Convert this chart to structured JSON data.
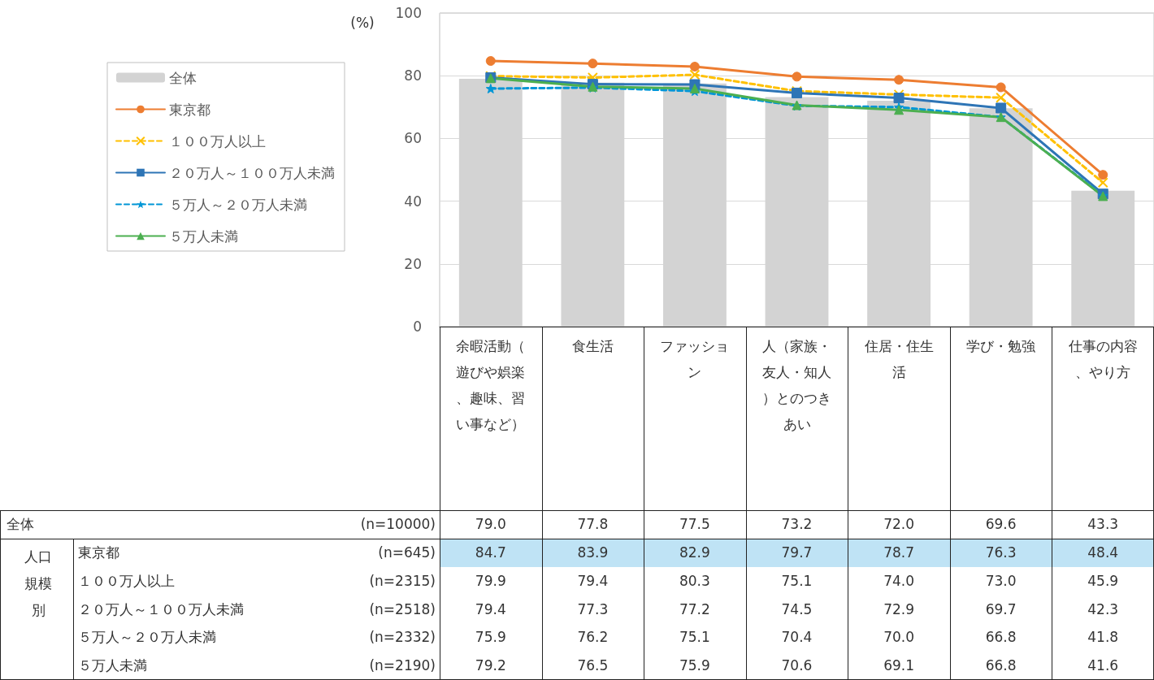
{
  "chart_data": {
    "type": "bar",
    "ylabel": "(%)",
    "categories": [
      "余暇活動（遊びや娯楽、趣味、習い事など）",
      "食生活",
      "ファッション",
      "人（家族・友人・知人）とのつきあい",
      "住居・住生活",
      "学び・勉強",
      "仕事の内容、やり方"
    ],
    "series": [
      {
        "name": "全体",
        "color": "#d3d3d3",
        "values": [
          79.0,
          77.8,
          77.5,
          73.2,
          72.0,
          69.6,
          43.3
        ],
        "value_labels": [
          "79.0",
          "77.8",
          "77.5",
          "73.2",
          "72.0",
          "69.6",
          "43.3"
        ]
      },
      {
        "name": "東京都",
        "type": "line",
        "color": "#ed7d31",
        "marker": "circle",
        "line_style": "solid",
        "values": [
          84.7,
          83.9,
          82.9,
          79.7,
          78.7,
          76.3,
          48.4
        ],
        "value_labels": [
          "84.7",
          "83.9",
          "82.9",
          "79.7",
          "78.7",
          "76.3",
          "48.4"
        ]
      },
      {
        "name": "１００万人以上",
        "type": "line",
        "color": "#ffc000",
        "marker": "cross",
        "line_style": "dashed",
        "values": [
          79.9,
          79.4,
          80.3,
          75.1,
          74.0,
          73.0,
          45.9
        ],
        "value_labels": [
          "79.9",
          "79.4",
          "80.3",
          "75.1",
          "74.0",
          "73.0",
          "45.9"
        ]
      },
      {
        "name": "２０万人～１００万人未満",
        "type": "line",
        "color": "#2e75b6",
        "marker": "square",
        "line_style": "solid",
        "values": [
          79.4,
          77.3,
          77.2,
          74.5,
          72.9,
          69.7,
          42.3
        ],
        "value_labels": [
          "79.4",
          "77.3",
          "77.2",
          "74.5",
          "72.9",
          "69.7",
          "42.3"
        ]
      },
      {
        "name": "５万人～２０万人未満",
        "type": "line",
        "color": "#0096d6",
        "marker": "star",
        "line_style": "dashed",
        "values": [
          75.9,
          76.2,
          75.1,
          70.4,
          70.0,
          66.8,
          41.8
        ],
        "value_labels": [
          "75.9",
          "76.2",
          "75.1",
          "70.4",
          "70.0",
          "66.8",
          "41.8"
        ]
      },
      {
        "name": "５万人未満",
        "type": "line",
        "color": "#4caf50",
        "marker": "triangle",
        "line_style": "solid",
        "values": [
          79.2,
          76.5,
          75.9,
          70.6,
          69.1,
          66.8,
          41.6
        ],
        "value_labels": [
          "79.2",
          "76.5",
          "75.9",
          "70.6",
          "69.1",
          "66.8",
          "41.6"
        ]
      }
    ],
    "ylim": [
      0,
      100
    ],
    "yticks": [
      0,
      20,
      40,
      60,
      80,
      100
    ],
    "grid": "y",
    "legend": "left",
    "annotations": [
      "(n=10000)",
      "(n=645)",
      "(n=2315)",
      "(n=2518)",
      "(n=2332)",
      "(n=2190)",
      "人口規模別"
    ]
  }
}
